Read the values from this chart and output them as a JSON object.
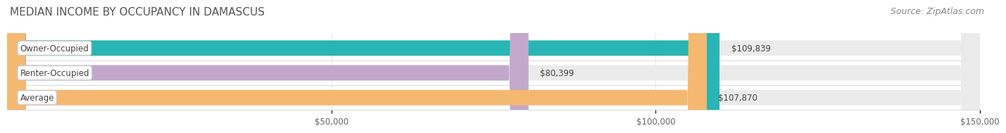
{
  "title": "MEDIAN INCOME BY OCCUPANCY IN DAMASCUS",
  "source": "Source: ZipAtlas.com",
  "categories": [
    "Owner-Occupied",
    "Renter-Occupied",
    "Average"
  ],
  "values": [
    109839,
    80399,
    107870
  ],
  "bar_colors": [
    "#29b5b5",
    "#c4a8cc",
    "#f5b870"
  ],
  "bar_labels": [
    "$109,839",
    "$80,399",
    "$107,870"
  ],
  "xlim": [
    0,
    150000
  ],
  "xticks": [
    50000,
    100000,
    150000
  ],
  "xtick_labels": [
    "$50,000",
    "$100,000",
    "$150,000"
  ],
  "background_color": "#ffffff",
  "bar_bg_color": "#ebebeb",
  "bar_separator_color": "#dddddd",
  "title_fontsize": 11,
  "source_fontsize": 9,
  "label_fontsize": 8.5,
  "tick_fontsize": 8.5
}
